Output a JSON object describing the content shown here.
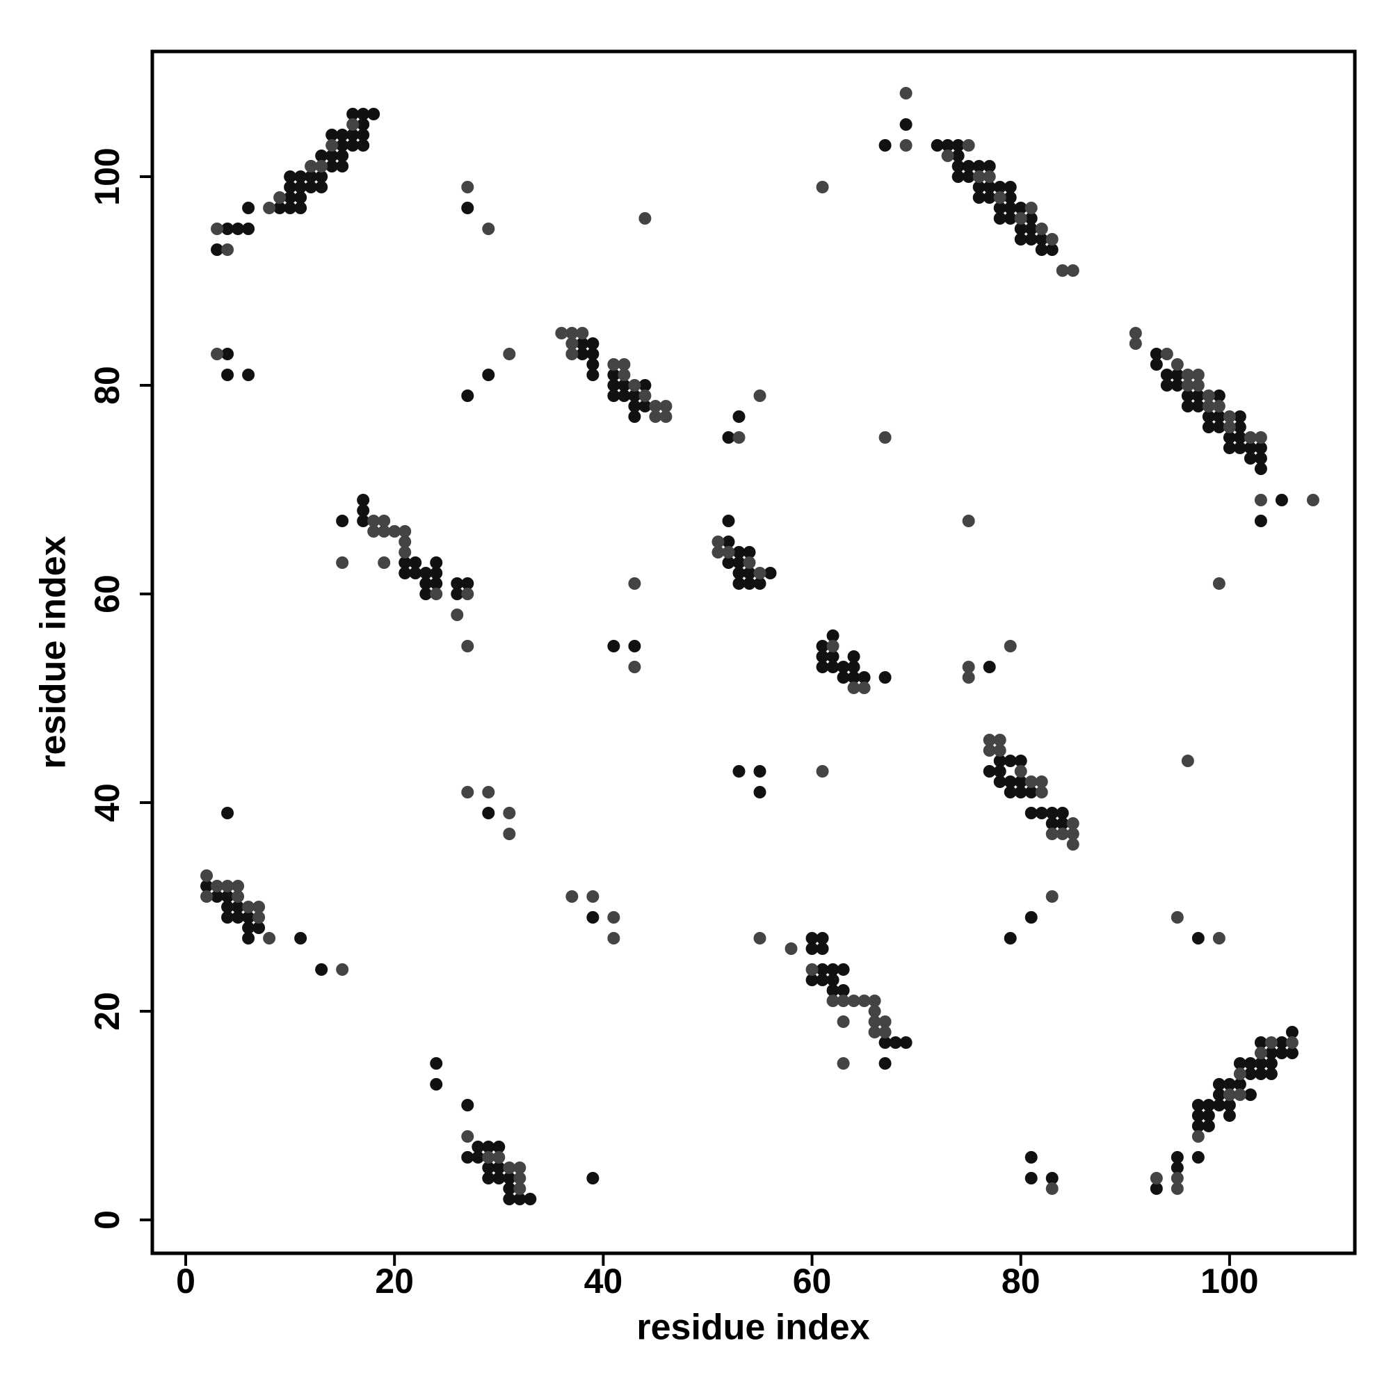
{
  "chart_data": {
    "type": "scatter",
    "xlabel": "residue index",
    "ylabel": "residue index",
    "xlim": [
      -3.2,
      112
    ],
    "ylim": [
      -3.2,
      112
    ],
    "xticks": [
      0,
      20,
      40,
      60,
      80,
      100
    ],
    "yticks": [
      0,
      20,
      40,
      60,
      80,
      100
    ],
    "series": [
      {
        "color": "#111111",
        "x": [
          3,
          4,
          5,
          6,
          6,
          9,
          10,
          10,
          10,
          11,
          11,
          11,
          11,
          12,
          12,
          12,
          13,
          13,
          13,
          14,
          14,
          14,
          15,
          15,
          15,
          15,
          16,
          16,
          16,
          17,
          17,
          17,
          17,
          18,
          10,
          2,
          3,
          4,
          4,
          5,
          5,
          6,
          6,
          6,
          7,
          4,
          4,
          4,
          4,
          6,
          11,
          13,
          15,
          17,
          17,
          17,
          21,
          22,
          22,
          23,
          23,
          23,
          24,
          24,
          24,
          26,
          26,
          27,
          21,
          24,
          24,
          27,
          27,
          28,
          28,
          29,
          29,
          29,
          30,
          30,
          30,
          31,
          31,
          31,
          32,
          33,
          27,
          29,
          27,
          29,
          39,
          39,
          41,
          43,
          38,
          38,
          39,
          39,
          39,
          39,
          41,
          41,
          41,
          42,
          42,
          43,
          43,
          43,
          44,
          44,
          52,
          53,
          52,
          52,
          52,
          53,
          53,
          53,
          53,
          54,
          54,
          54,
          55,
          56,
          53,
          55,
          55,
          60,
          60,
          60,
          61,
          61,
          61,
          61,
          62,
          62,
          62,
          63,
          63,
          67,
          67,
          68,
          69,
          61,
          61,
          61,
          62,
          62,
          62,
          63,
          63,
          64,
          64,
          64,
          65,
          67,
          67,
          69,
          72,
          73,
          74,
          74,
          74,
          74,
          75,
          75,
          76,
          76,
          76,
          77,
          77,
          77,
          78,
          78,
          78,
          79,
          79,
          79,
          79,
          80,
          80,
          80,
          81,
          81,
          81,
          82,
          82,
          83,
          77,
          77,
          78,
          78,
          78,
          79,
          79,
          79,
          80,
          80,
          80,
          81,
          81,
          82,
          83,
          83,
          84,
          84,
          81,
          79,
          81,
          81,
          83,
          93,
          93,
          94,
          94,
          95,
          95,
          96,
          96,
          97,
          97,
          98,
          98,
          99,
          99,
          99,
          100,
          100,
          101,
          101,
          101,
          101,
          102,
          102,
          103,
          103,
          103,
          103,
          105,
          97,
          93,
          95,
          95,
          97,
          97,
          97,
          97,
          98,
          98,
          98,
          99,
          99,
          99,
          100,
          100,
          100,
          101,
          101,
          102,
          102,
          102,
          103,
          103,
          103,
          104,
          104,
          104,
          105,
          105,
          106,
          106
        ],
        "values": [
          93,
          95,
          95,
          95,
          97,
          97,
          97,
          98,
          99,
          97,
          98,
          99,
          100,
          99,
          100,
          101,
          99,
          100,
          102,
          101,
          102,
          104,
          101,
          102,
          103,
          104,
          103,
          104,
          106,
          103,
          104,
          105,
          106,
          106,
          100,
          32,
          31,
          30,
          29,
          29,
          30,
          29,
          28,
          27,
          28,
          31,
          39,
          81,
          83,
          81,
          27,
          24,
          67,
          69,
          68,
          67,
          63,
          63,
          62,
          62,
          61,
          60,
          63,
          61,
          62,
          61,
          60,
          61,
          62,
          15,
          13,
          11,
          6,
          7,
          6,
          7,
          5,
          4,
          7,
          4,
          5,
          4,
          3,
          2,
          2,
          2,
          97,
          81,
          79,
          39,
          29,
          4,
          55,
          55,
          84,
          83,
          84,
          83,
          82,
          81,
          81,
          80,
          79,
          79,
          80,
          79,
          77,
          78,
          78,
          80,
          75,
          77,
          67,
          65,
          63,
          64,
          63,
          62,
          61,
          64,
          62,
          61,
          61,
          62,
          43,
          43,
          41,
          27,
          26,
          23,
          27,
          26,
          24,
          23,
          24,
          23,
          22,
          24,
          22,
          17,
          15,
          17,
          17,
          55,
          54,
          53,
          56,
          54,
          53,
          53,
          52,
          54,
          53,
          52,
          52,
          52,
          103,
          105,
          103,
          103,
          103,
          102,
          101,
          100,
          101,
          100,
          101,
          99,
          98,
          101,
          99,
          98,
          99,
          97,
          96,
          99,
          98,
          97,
          96,
          97,
          95,
          94,
          96,
          95,
          94,
          94,
          93,
          93,
          53,
          43,
          44,
          43,
          42,
          44,
          42,
          41,
          44,
          42,
          41,
          41,
          39,
          39,
          39,
          38,
          39,
          38,
          29,
          27,
          6,
          4,
          4,
          83,
          82,
          81,
          80,
          81,
          80,
          79,
          78,
          79,
          78,
          77,
          76,
          79,
          77,
          76,
          75,
          74,
          77,
          76,
          75,
          74,
          74,
          73,
          74,
          73,
          72,
          67,
          69,
          27,
          3,
          6,
          5,
          6,
          11,
          10,
          9,
          11,
          10,
          9,
          13,
          11,
          12,
          13,
          11,
          10,
          15,
          13,
          15,
          14,
          12,
          17,
          15,
          14,
          16,
          15,
          14,
          17,
          16,
          18,
          16
        ]
      },
      {
        "color": "#444444",
        "x": [
          3,
          4,
          8,
          9,
          12,
          14,
          16,
          13,
          2,
          2,
          3,
          4,
          5,
          5,
          6,
          7,
          7,
          8,
          3,
          15,
          15,
          18,
          18,
          19,
          19,
          19,
          20,
          21,
          21,
          21,
          24,
          26,
          27,
          27,
          27,
          29,
          30,
          31,
          32,
          32,
          32,
          27,
          29,
          31,
          27,
          29,
          31,
          31,
          37,
          39,
          41,
          41,
          44,
          43,
          43,
          36,
          37,
          37,
          37,
          38,
          41,
          42,
          42,
          43,
          44,
          45,
          45,
          46,
          46,
          53,
          55,
          51,
          51,
          52,
          55,
          54,
          55,
          58,
          61,
          61,
          60,
          62,
          63,
          63,
          63,
          64,
          65,
          66,
          66,
          66,
          66,
          67,
          67,
          62,
          64,
          65,
          69,
          69,
          67,
          73,
          75,
          76,
          77,
          78,
          80,
          81,
          82,
          83,
          84,
          85,
          75,
          75,
          75,
          79,
          77,
          77,
          78,
          78,
          80,
          81,
          82,
          82,
          83,
          84,
          85,
          85,
          85,
          83,
          83,
          91,
          91,
          94,
          95,
          96,
          96,
          97,
          97,
          98,
          98,
          99,
          100,
          100,
          102,
          103,
          103,
          108,
          96,
          99,
          95,
          99,
          93,
          95,
          95,
          97,
          100,
          101,
          101,
          103,
          104,
          106
        ],
        "values": [
          95,
          93,
          97,
          98,
          101,
          103,
          105,
          101,
          33,
          31,
          32,
          32,
          32,
          31,
          30,
          30,
          29,
          27,
          83,
          24,
          63,
          67,
          66,
          67,
          66,
          63,
          66,
          66,
          65,
          64,
          60,
          58,
          60,
          55,
          8,
          6,
          6,
          5,
          5,
          4,
          3,
          99,
          95,
          83,
          41,
          41,
          39,
          37,
          31,
          31,
          29,
          27,
          96,
          53,
          61,
          85,
          85,
          84,
          83,
          85,
          82,
          82,
          81,
          80,
          79,
          78,
          77,
          78,
          77,
          75,
          79,
          65,
          64,
          64,
          62,
          63,
          27,
          26,
          99,
          43,
          24,
          21,
          21,
          19,
          15,
          21,
          21,
          21,
          20,
          19,
          18,
          19,
          18,
          55,
          51,
          51,
          108,
          103,
          75,
          102,
          103,
          100,
          100,
          98,
          96,
          97,
          95,
          94,
          91,
          91,
          67,
          53,
          52,
          55,
          46,
          45,
          46,
          45,
          43,
          42,
          42,
          41,
          37,
          37,
          38,
          37,
          36,
          31,
          3,
          85,
          84,
          83,
          82,
          81,
          80,
          81,
          80,
          79,
          78,
          78,
          77,
          76,
          75,
          75,
          69,
          69,
          44,
          61,
          29,
          27,
          4,
          4,
          3,
          8,
          12,
          14,
          12,
          16,
          17,
          17
        ]
      }
    ]
  }
}
